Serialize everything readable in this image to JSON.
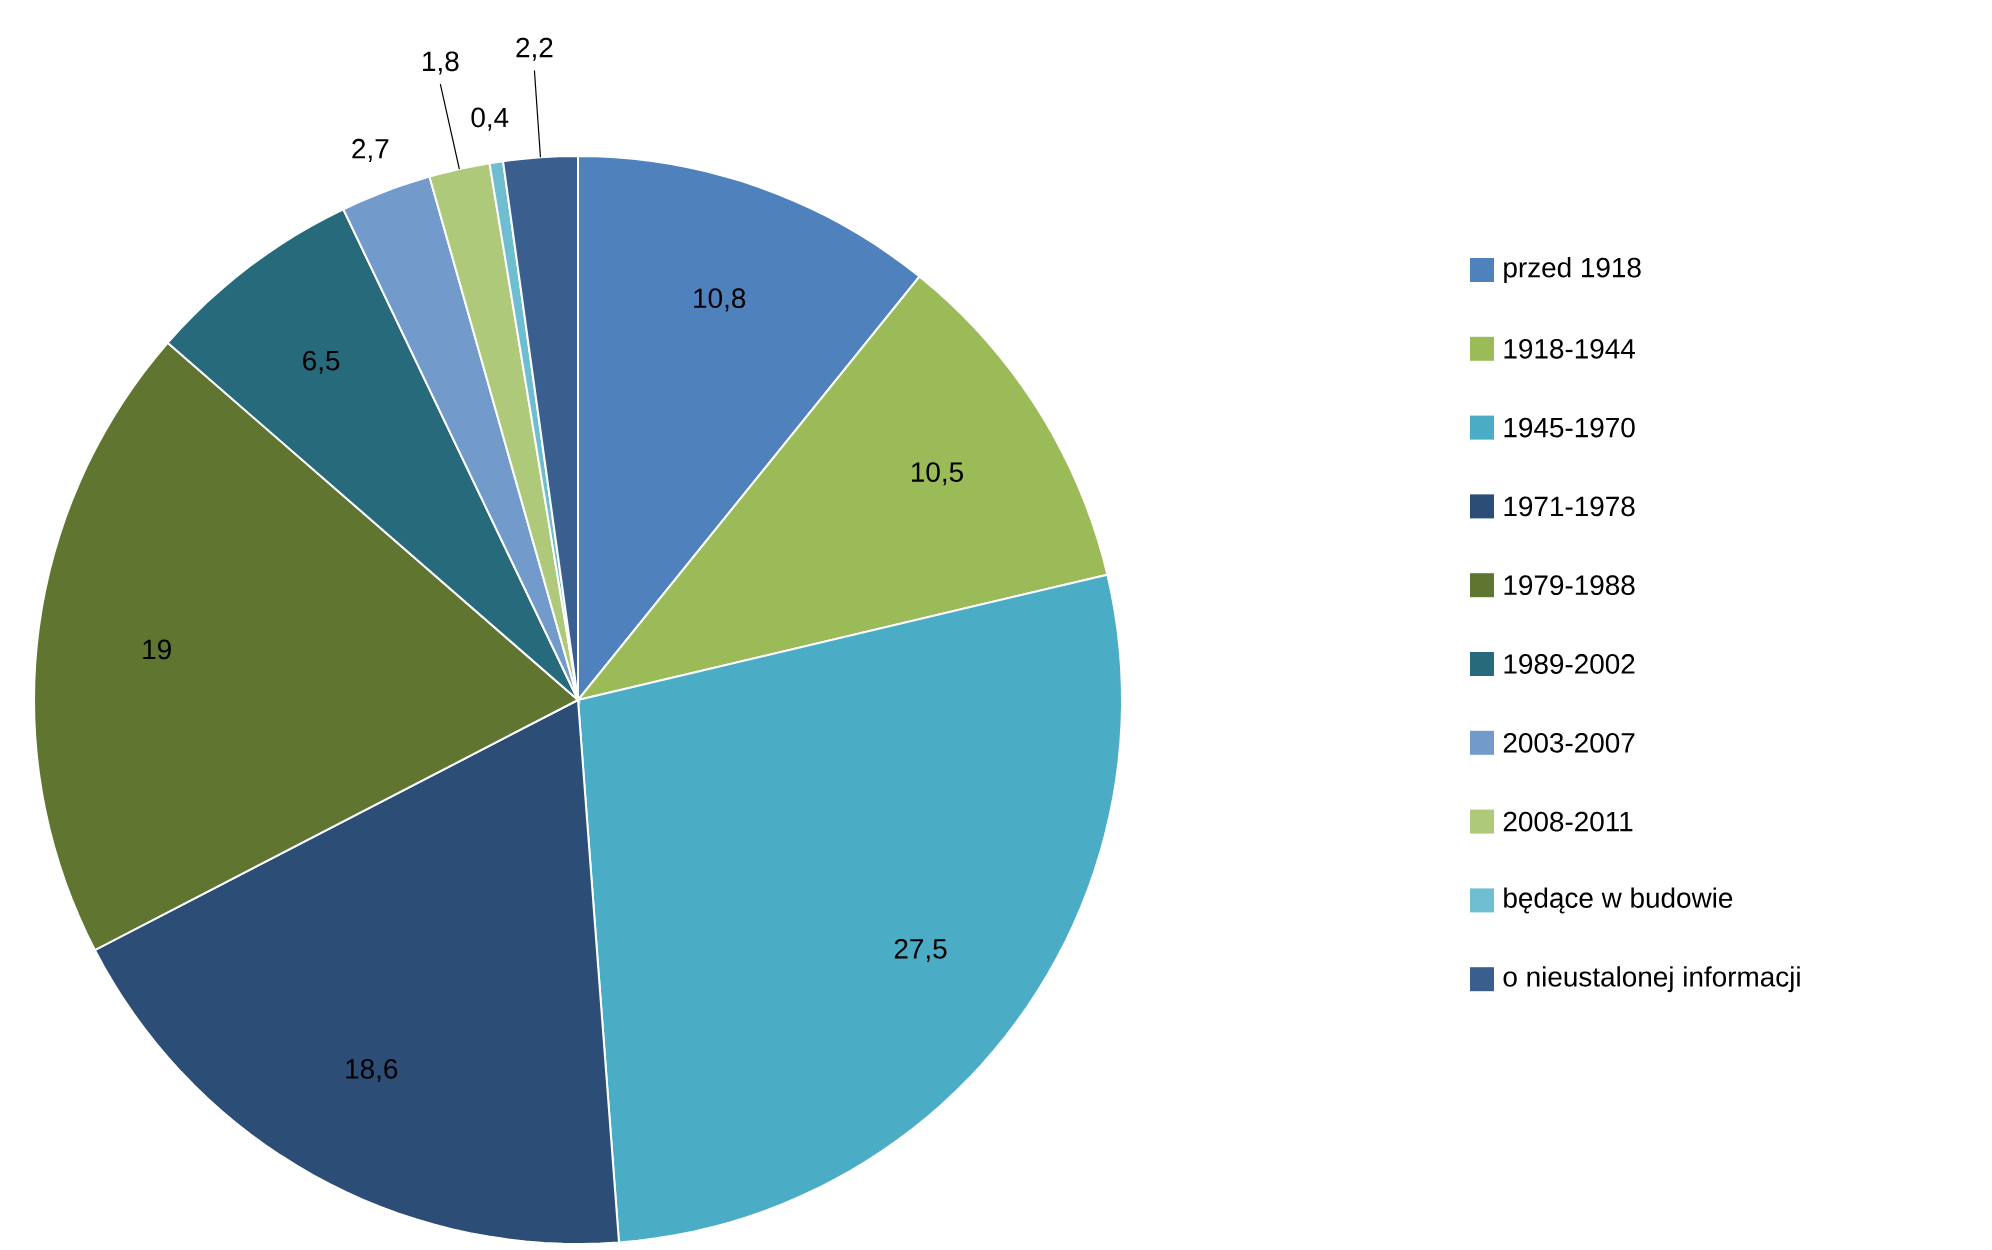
{
  "chart_data": {
    "type": "pie",
    "categories": [
      "przed 1918",
      "1918-1944",
      "1945-1970",
      "1971-1978",
      "1979-1988",
      "1989-2002",
      "2003-2007",
      "2008-2011",
      "będące w budowie",
      "o nieustalonej informacji"
    ],
    "values": [
      10.8,
      10.5,
      27.5,
      18.6,
      19,
      6.5,
      2.7,
      1.8,
      0.4,
      2.2
    ],
    "value_labels": [
      "10,8",
      "10,5",
      "27,5",
      "18,6",
      "19",
      "6,5",
      "2,7",
      "1,8",
      "0,4",
      "2,2"
    ],
    "colors": [
      "#4f81bd",
      "#9bbb59",
      "#4bacc6",
      "#2c4d75",
      "#5f7530",
      "#276a7c",
      "#729aca",
      "#afc97a",
      "#6fbdd1",
      "#3a5f8f"
    ],
    "legend": "right"
  }
}
